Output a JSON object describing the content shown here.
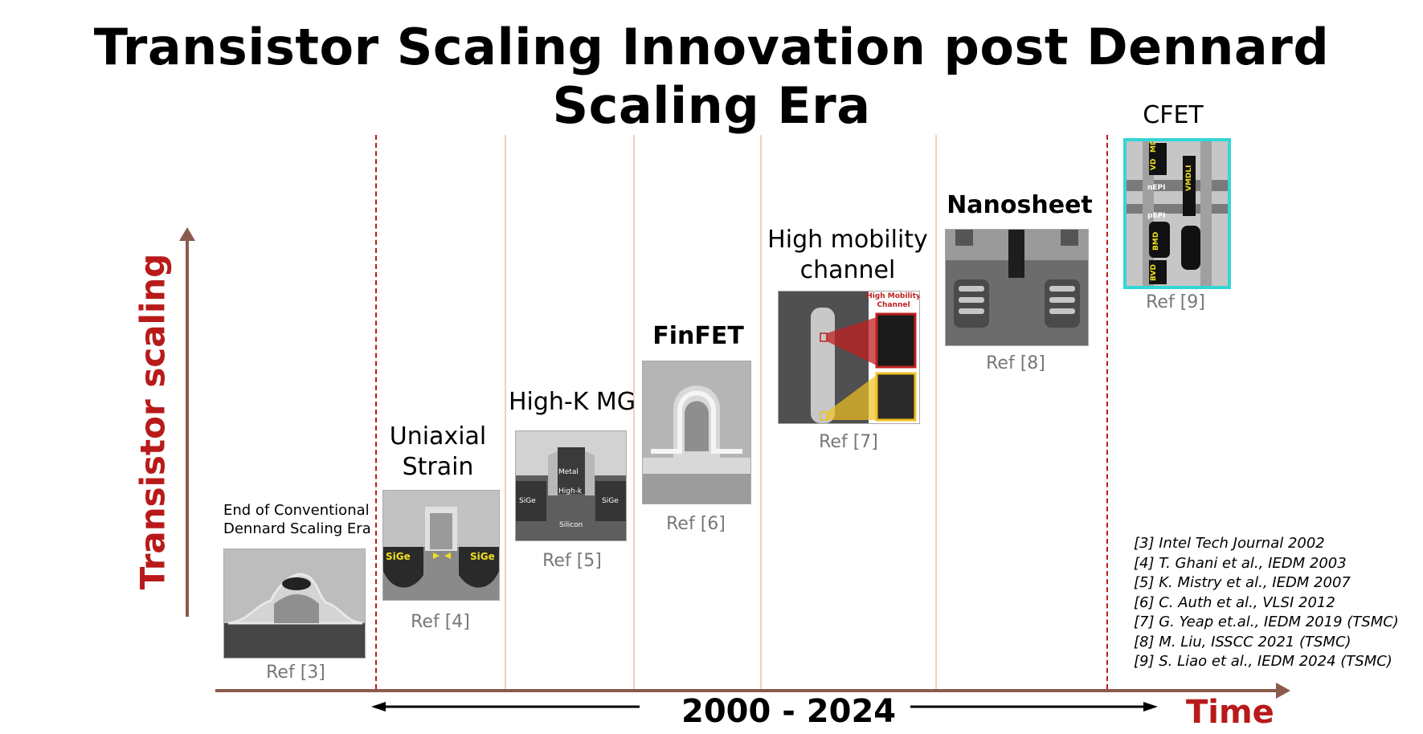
{
  "title": "Transistor Scaling Innovation post Dennard Scaling Era",
  "y_axis_label": "Transistor scaling",
  "x_axis": {
    "range_label": "2000 - 2024",
    "label": "Time"
  },
  "colors": {
    "accent": "#b81a1a",
    "axis": "#8b5a4c",
    "ref_text": "#777777",
    "divider": "#f0cfbf",
    "cfet_frame": "#33d6d6"
  },
  "eras": [
    {
      "label_line1": "End of Conventional",
      "label_line2": "Dennard Scaling Era",
      "ref": "Ref [3]",
      "image_labels": {}
    },
    {
      "label_line1": "Uniaxial",
      "label_line2": "Strain",
      "ref": "Ref [4]",
      "image_labels": {
        "left": "SiGe",
        "right": "SiGe"
      }
    },
    {
      "label_line1": "High-K MG",
      "ref": "Ref [5]",
      "image_labels": {
        "metal": "Metal",
        "highk": "High-k",
        "left": "SiGe",
        "right": "SiGe",
        "silicon": "Silicon"
      }
    },
    {
      "label_line1": "FinFET",
      "ref": "Ref [6]",
      "image_labels": {}
    },
    {
      "label_line1": "High mobility",
      "label_line2": "channel",
      "ref": "Ref [7]",
      "image_labels": {
        "inset_line1": "High Mobility",
        "inset_line2": "Channel"
      }
    },
    {
      "label_line1": "Nanosheet",
      "ref": "Ref [8]",
      "image_labels": {}
    },
    {
      "label_line1": "CFET",
      "ref": "Ref [9]",
      "image_labels": {
        "md": "MD",
        "vd": "VD",
        "nepi": "nEPI",
        "pepi": "pEPI",
        "bmd": "BMD",
        "bvd": "BVD",
        "vmdli": "VMDLI"
      }
    }
  ],
  "references": [
    "[3] Intel Tech Journal 2002",
    "[4] T. Ghani et al., IEDM 2003",
    "[5] K. Mistry et al., IEDM 2007",
    "[6] C. Auth et al., VLSI 2012",
    "[7] G. Yeap et.al., IEDM 2019 (TSMC)",
    "[8] M. Liu, ISSCC 2021 (TSMC)",
    "[9] S. Liao et al., IEDM 2024 (TSMC)"
  ]
}
